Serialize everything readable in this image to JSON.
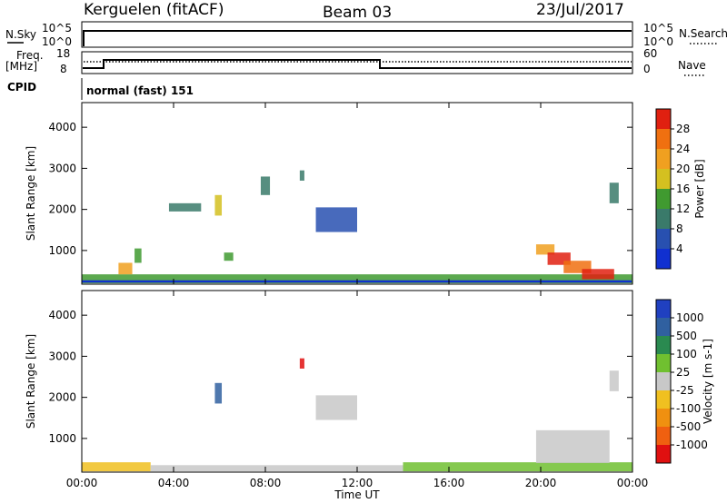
{
  "header": {
    "station": "Kerguelen (fitACF)",
    "beam": "Beam 03",
    "date": "23/Jul/2017"
  },
  "panels": {
    "nsky": {
      "label": "N.Sky",
      "ticks": [
        "10^5",
        "10^0"
      ]
    },
    "nsearch": {
      "label": "N.Search"
    },
    "freq": {
      "label_1": "Freq.",
      "label_2": "[MHz]",
      "ticks": [
        "18",
        "8"
      ]
    },
    "nave": {
      "label": "Nave",
      "ticks": [
        "60",
        "0"
      ]
    },
    "cpid": {
      "label": "CPID",
      "value": "normal (fast) 151"
    }
  },
  "colors": {
    "power": [
      "#1030d0",
      "#2850b0",
      "#3a7a6a",
      "#409a30",
      "#d4c020",
      "#f0a020",
      "#f07010",
      "#e02010"
    ],
    "velocity": [
      "#e01010",
      "#f06010",
      "#f09010",
      "#f0c020",
      "#c8c8c8",
      "#70c030",
      "#2a8a50",
      "#3060a0",
      "#2040c0"
    ]
  },
  "chart_data": [
    {
      "type": "heatmap",
      "title": "Power",
      "xlabel": "Time UT",
      "ylabel": "Slant Range [km]",
      "x_ticks": [
        "00:00",
        "04:00",
        "08:00",
        "12:00",
        "16:00",
        "20:00",
        "00:00"
      ],
      "y_ticks": [
        1000,
        2000,
        3000,
        4000
      ],
      "xlim_hours": [
        0,
        24
      ],
      "ylim_km": [
        180,
        4600
      ],
      "colorbar": {
        "label": "Power [dB]",
        "ticks": [
          4,
          8,
          12,
          16,
          20,
          24,
          28
        ],
        "range": [
          0,
          32
        ]
      },
      "regions": [
        {
          "t0": 0.0,
          "t1": 24.0,
          "r0": 200,
          "r1": 420,
          "level": 3
        },
        {
          "t0": 1.6,
          "t1": 2.2,
          "r0": 420,
          "r1": 700,
          "level": 5
        },
        {
          "t0": 2.3,
          "t1": 2.6,
          "r0": 700,
          "r1": 1050,
          "level": 3
        },
        {
          "t0": 3.8,
          "t1": 5.2,
          "r0": 1950,
          "r1": 2150,
          "level": 2
        },
        {
          "t0": 5.8,
          "t1": 6.1,
          "r0": 1850,
          "r1": 2350,
          "level": 4
        },
        {
          "t0": 6.2,
          "t1": 6.6,
          "r0": 750,
          "r1": 950,
          "level": 3
        },
        {
          "t0": 7.8,
          "t1": 8.2,
          "r0": 2350,
          "r1": 2800,
          "level": 2
        },
        {
          "t0": 9.5,
          "t1": 9.7,
          "r0": 2700,
          "r1": 2950,
          "level": 2
        },
        {
          "t0": 10.2,
          "t1": 12.0,
          "r0": 1450,
          "r1": 2050,
          "level": 1
        },
        {
          "t0": 19.8,
          "t1": 20.6,
          "r0": 900,
          "r1": 1150,
          "level": 5
        },
        {
          "t0": 20.3,
          "t1": 21.3,
          "r0": 650,
          "r1": 950,
          "level": 7
        },
        {
          "t0": 21.0,
          "t1": 22.2,
          "r0": 450,
          "r1": 750,
          "level": 6
        },
        {
          "t0": 21.8,
          "t1": 23.2,
          "r0": 300,
          "r1": 550,
          "level": 7
        },
        {
          "t0": 23.0,
          "t1": 23.4,
          "r0": 2150,
          "r1": 2650,
          "level": 2
        }
      ]
    },
    {
      "type": "heatmap",
      "title": "Velocity",
      "xlabel": "Time UT",
      "ylabel": "Slant Range [km]",
      "x_ticks": [
        "00:00",
        "04:00",
        "08:00",
        "12:00",
        "16:00",
        "20:00",
        "00:00"
      ],
      "y_ticks": [
        1000,
        2000,
        3000,
        4000
      ],
      "xlim_hours": [
        0,
        24
      ],
      "ylim_km": [
        180,
        4600
      ],
      "colorbar": {
        "label": "Velocity [m s-1]",
        "ticks": [
          "1000",
          "500",
          "100",
          "25",
          "-25",
          "-100",
          "-500",
          "-1000"
        ]
      },
      "regions": [
        {
          "t0": 0.0,
          "t1": 3.0,
          "r0": 200,
          "r1": 420,
          "level": 3
        },
        {
          "t0": 3.0,
          "t1": 14.0,
          "r0": 200,
          "r1": 350,
          "level": 4
        },
        {
          "t0": 14.0,
          "t1": 24.0,
          "r0": 200,
          "r1": 420,
          "level": 5
        },
        {
          "t0": 5.8,
          "t1": 6.1,
          "r0": 1850,
          "r1": 2350,
          "level": 7
        },
        {
          "t0": 9.5,
          "t1": 9.7,
          "r0": 2700,
          "r1": 2950,
          "level": 0
        },
        {
          "t0": 10.2,
          "t1": 12.0,
          "r0": 1450,
          "r1": 2050,
          "level": 4
        },
        {
          "t0": 19.8,
          "t1": 23.0,
          "r0": 400,
          "r1": 1200,
          "level": 4
        },
        {
          "t0": 23.0,
          "t1": 23.4,
          "r0": 2150,
          "r1": 2650,
          "level": 4
        }
      ]
    }
  ]
}
